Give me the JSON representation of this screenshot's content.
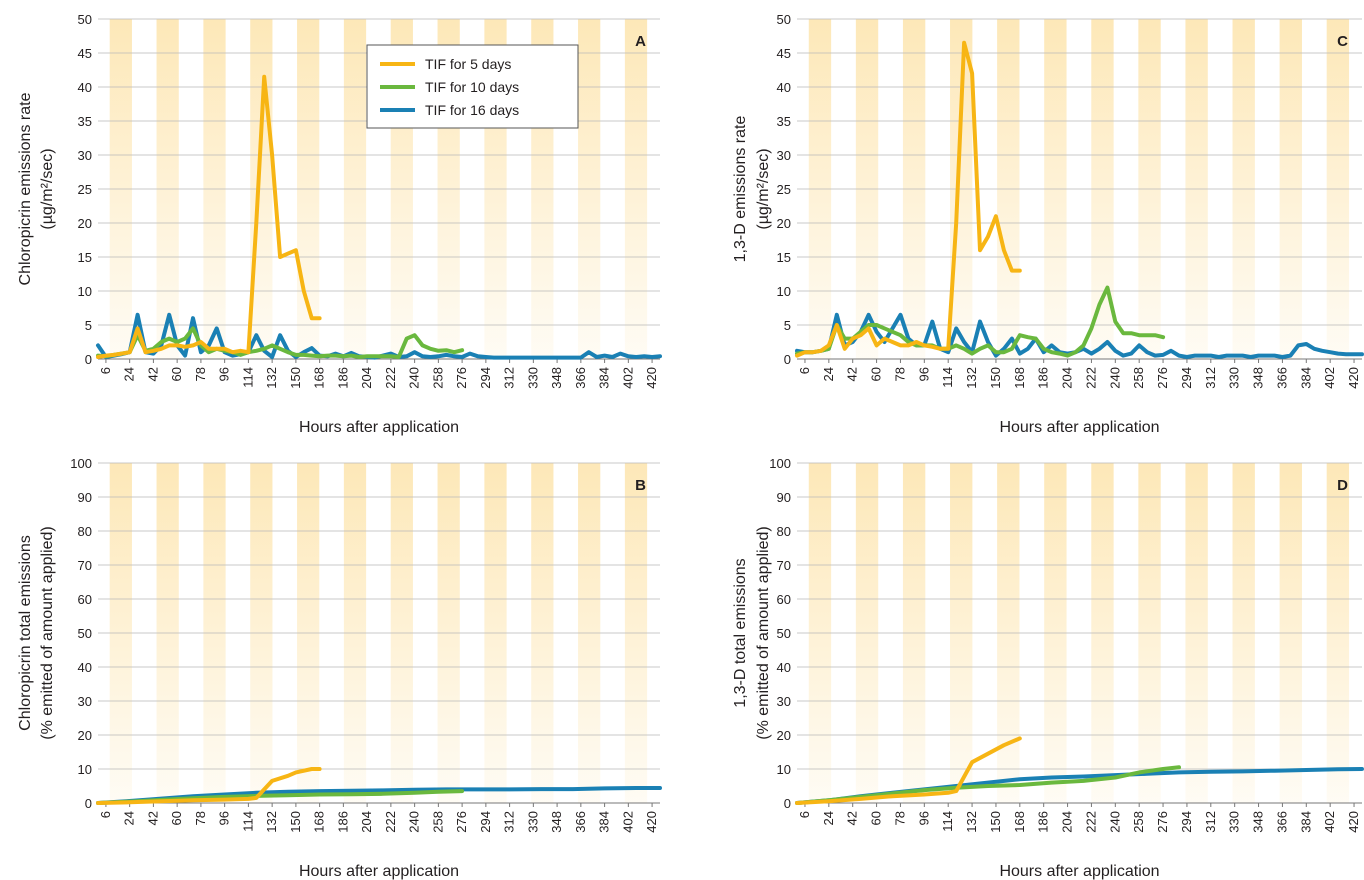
{
  "legend": [
    {
      "label": "TIF for 5 days",
      "color": "#f7b514"
    },
    {
      "label": "TIF for 10 days",
      "color": "#6ab83e"
    },
    {
      "label": "TIF for 16 days",
      "color": "#1a80b4"
    }
  ],
  "colors": {
    "band": "#fde8b8",
    "grid": "#b8b8b8",
    "axis": "#777777"
  },
  "chart_data": [
    {
      "panel": "A",
      "type": "line",
      "xlabel": "Hours after application",
      "ylabel": [
        "Chloropicrin emissions rate",
        "(µg/m²/sec)"
      ],
      "ylim": [
        0,
        50
      ],
      "yticks": [
        0,
        5,
        10,
        15,
        20,
        25,
        30,
        35,
        40,
        45,
        50
      ],
      "xlim": [
        0,
        426
      ],
      "xticks": [
        6,
        24,
        42,
        60,
        78,
        96,
        114,
        132,
        150,
        168,
        186,
        204,
        222,
        240,
        258,
        276,
        294,
        312,
        330,
        348,
        366,
        384,
        402,
        420
      ],
      "legend_position": "top-center",
      "series": [
        {
          "name": "TIF for 16 days",
          "color": "#1a80b4",
          "x": [
            0,
            6,
            12,
            18,
            24,
            30,
            36,
            42,
            48,
            54,
            60,
            66,
            72,
            78,
            84,
            90,
            96,
            102,
            108,
            114,
            120,
            126,
            132,
            138,
            144,
            150,
            156,
            162,
            168,
            174,
            180,
            186,
            192,
            198,
            204,
            210,
            216,
            222,
            228,
            234,
            240,
            246,
            252,
            258,
            264,
            270,
            276,
            282,
            288,
            294,
            300,
            306,
            312,
            318,
            324,
            330,
            336,
            342,
            348,
            354,
            360,
            366,
            372,
            378,
            384,
            390,
            396,
            402,
            408,
            414,
            420,
            426
          ],
          "y": [
            2.0,
            0.3,
            0.5,
            0.7,
            1.0,
            6.5,
            1.0,
            0.8,
            2.0,
            6.5,
            2.0,
            0.5,
            6.0,
            1.0,
            2.0,
            4.5,
            1.0,
            0.5,
            0.7,
            1.0,
            3.5,
            1.2,
            0.3,
            3.5,
            1.2,
            0.3,
            1.0,
            1.6,
            0.5,
            0.4,
            0.8,
            0.4,
            0.9,
            0.4,
            0.3,
            0.2,
            0.5,
            0.8,
            0.3,
            0.4,
            1.0,
            0.4,
            0.3,
            0.4,
            0.6,
            0.4,
            0.3,
            0.8,
            0.4,
            0.3,
            0.2,
            0.2,
            0.2,
            0.2,
            0.2,
            0.2,
            0.2,
            0.2,
            0.2,
            0.2,
            0.2,
            0.2,
            1.0,
            0.3,
            0.5,
            0.3,
            0.8,
            0.4,
            0.3,
            0.4,
            0.3,
            0.4
          ]
        },
        {
          "name": "TIF for 10 days",
          "color": "#6ab83e",
          "x": [
            0,
            6,
            12,
            18,
            24,
            30,
            36,
            42,
            48,
            54,
            60,
            66,
            72,
            78,
            84,
            90,
            96,
            102,
            108,
            114,
            120,
            126,
            132,
            138,
            144,
            150,
            156,
            162,
            168,
            174,
            180,
            186,
            192,
            198,
            204,
            210,
            216,
            222,
            228,
            234,
            240,
            246,
            252,
            258,
            264,
            270,
            276
          ],
          "y": [
            0.5,
            0.4,
            0.6,
            0.8,
            1.0,
            3.5,
            1.2,
            1.5,
            2.5,
            3.0,
            2.5,
            3.0,
            4.5,
            2.0,
            1.0,
            1.5,
            1.2,
            1.0,
            0.6,
            1.0,
            1.2,
            1.5,
            2.0,
            1.5,
            1.0,
            0.6,
            0.6,
            0.5,
            0.4,
            0.5,
            0.5,
            0.4,
            0.5,
            0.3,
            0.4,
            0.4,
            0.4,
            0.4,
            0.3,
            3.0,
            3.5,
            2.0,
            1.5,
            1.2,
            1.3,
            1.0,
            1.3
          ]
        },
        {
          "name": "TIF for 5 days",
          "color": "#f7b514",
          "x": [
            0,
            6,
            12,
            18,
            24,
            30,
            36,
            42,
            48,
            54,
            60,
            66,
            72,
            78,
            84,
            90,
            96,
            102,
            108,
            114,
            120,
            126,
            132,
            138,
            144,
            150,
            156,
            162,
            168
          ],
          "y": [
            0.3,
            0.5,
            0.6,
            0.8,
            1.0,
            4.5,
            1.0,
            1.2,
            1.5,
            2.0,
            2.0,
            1.8,
            2.0,
            2.5,
            1.5,
            1.5,
            1.5,
            1.0,
            1.2,
            1.0,
            20.0,
            41.5,
            30.0,
            15.0,
            15.5,
            16.0,
            10.0,
            6.0,
            6.0
          ]
        }
      ]
    },
    {
      "panel": "C",
      "type": "line",
      "xlabel": "Hours after application",
      "ylabel": [
        "1,3-D emissions rate",
        "(µg/m²/sec)"
      ],
      "ylim": [
        0,
        50
      ],
      "yticks": [
        0,
        5,
        10,
        15,
        20,
        25,
        30,
        35,
        40,
        45,
        50
      ],
      "xlim": [
        0,
        426
      ],
      "xticks": [
        6,
        24,
        42,
        60,
        78,
        96,
        114,
        132,
        150,
        168,
        186,
        204,
        222,
        240,
        258,
        276,
        294,
        312,
        330,
        348,
        366,
        384,
        402,
        420
      ],
      "series": [
        {
          "name": "TIF for 16 days",
          "color": "#1a80b4",
          "x": [
            0,
            6,
            12,
            18,
            24,
            30,
            36,
            42,
            48,
            54,
            60,
            66,
            72,
            78,
            84,
            90,
            96,
            102,
            108,
            114,
            120,
            126,
            132,
            138,
            144,
            150,
            156,
            162,
            168,
            174,
            180,
            186,
            192,
            198,
            204,
            210,
            216,
            222,
            228,
            234,
            240,
            246,
            252,
            258,
            264,
            270,
            276,
            282,
            288,
            294,
            300,
            306,
            312,
            318,
            324,
            330,
            336,
            342,
            348,
            354,
            360,
            366,
            372,
            378,
            384,
            390,
            396,
            402,
            408,
            414,
            420,
            426
          ],
          "y": [
            1.2,
            1.0,
            1.0,
            1.2,
            1.5,
            6.5,
            2.0,
            2.5,
            4.0,
            6.5,
            4.0,
            2.5,
            4.5,
            6.5,
            3.0,
            2.0,
            2.0,
            5.5,
            1.5,
            1.0,
            4.5,
            2.5,
            1.0,
            5.5,
            2.5,
            0.5,
            1.5,
            3.0,
            0.8,
            1.5,
            3.0,
            1.0,
            2.0,
            1.0,
            0.8,
            1.0,
            1.5,
            0.8,
            1.5,
            2.5,
            1.2,
            0.5,
            0.8,
            2.0,
            1.0,
            0.5,
            0.6,
            1.2,
            0.5,
            0.3,
            0.5,
            0.5,
            0.5,
            0.3,
            0.5,
            0.5,
            0.5,
            0.3,
            0.5,
            0.5,
            0.5,
            0.3,
            0.5,
            2.0,
            2.2,
            1.5,
            1.2,
            1.0,
            0.8,
            0.7,
            0.7,
            0.7
          ]
        },
        {
          "name": "TIF for 10 days",
          "color": "#6ab83e",
          "x": [
            0,
            6,
            12,
            18,
            24,
            30,
            36,
            42,
            48,
            54,
            60,
            66,
            72,
            78,
            84,
            90,
            96,
            102,
            108,
            114,
            120,
            126,
            132,
            138,
            144,
            150,
            156,
            162,
            168,
            174,
            180,
            186,
            192,
            198,
            204,
            210,
            216,
            222,
            228,
            234,
            240,
            246,
            252,
            258,
            264,
            270,
            276
          ],
          "y": [
            0.8,
            1.0,
            1.0,
            1.2,
            1.5,
            5.0,
            3.0,
            3.0,
            4.0,
            5.0,
            5.0,
            4.5,
            4.0,
            3.5,
            2.5,
            2.0,
            2.0,
            2.0,
            1.5,
            1.5,
            2.0,
            1.5,
            0.8,
            1.5,
            2.0,
            1.0,
            1.0,
            1.5,
            3.5,
            3.2,
            3.0,
            1.5,
            1.0,
            0.8,
            0.5,
            1.0,
            2.0,
            4.5,
            8.0,
            10.5,
            5.5,
            3.8,
            3.8,
            3.5,
            3.5,
            3.5,
            3.2
          ]
        },
        {
          "name": "TIF for 5 days",
          "color": "#f7b514",
          "x": [
            0,
            6,
            12,
            18,
            24,
            30,
            36,
            42,
            48,
            54,
            60,
            66,
            72,
            78,
            84,
            90,
            96,
            102,
            108,
            114,
            120,
            126,
            132,
            138,
            144,
            150,
            156,
            162,
            168
          ],
          "y": [
            0.5,
            1.0,
            1.0,
            1.2,
            2.0,
            5.0,
            1.5,
            3.0,
            3.5,
            4.5,
            2.0,
            3.0,
            2.5,
            2.0,
            2.0,
            2.5,
            2.0,
            1.8,
            1.5,
            1.5,
            20.0,
            46.5,
            42.0,
            16.0,
            18.0,
            21.0,
            16.0,
            13.0,
            13.0
          ]
        }
      ]
    },
    {
      "panel": "B",
      "type": "line",
      "xlabel": "Hours after application",
      "ylabel": [
        "Chloropicrin total emissions",
        "(% emitted of amount applied)"
      ],
      "ylim": [
        0,
        100
      ],
      "yticks": [
        0,
        10,
        20,
        30,
        40,
        50,
        60,
        70,
        80,
        90,
        100
      ],
      "xlim": [
        0,
        426
      ],
      "xticks": [
        6,
        24,
        42,
        60,
        78,
        96,
        114,
        132,
        150,
        168,
        186,
        204,
        222,
        240,
        258,
        276,
        294,
        312,
        330,
        348,
        366,
        384,
        402,
        420
      ],
      "series": [
        {
          "name": "TIF for 16 days",
          "color": "#1a80b4",
          "x": [
            0,
            24,
            48,
            72,
            96,
            120,
            144,
            168,
            192,
            216,
            240,
            264,
            288,
            312,
            336,
            360,
            384,
            408,
            426
          ],
          "y": [
            0.0,
            0.6,
            1.3,
            2.0,
            2.5,
            3.0,
            3.3,
            3.5,
            3.6,
            3.7,
            3.9,
            4.0,
            4.0,
            4.0,
            4.1,
            4.1,
            4.3,
            4.4,
            4.4
          ]
        },
        {
          "name": "TIF for 10 days",
          "color": "#6ab83e",
          "x": [
            0,
            24,
            48,
            72,
            96,
            120,
            144,
            168,
            192,
            216,
            240,
            258,
            276
          ],
          "y": [
            0.0,
            0.4,
            0.9,
            1.4,
            1.8,
            2.1,
            2.3,
            2.5,
            2.6,
            2.7,
            3.0,
            3.3,
            3.5
          ]
        },
        {
          "name": "TIF for 5 days",
          "color": "#f7b514",
          "x": [
            0,
            24,
            48,
            72,
            96,
            114,
            120,
            132,
            144,
            150,
            162,
            168
          ],
          "y": [
            0.0,
            0.2,
            0.5,
            0.8,
            1.0,
            1.2,
            1.5,
            6.5,
            8.0,
            9.0,
            10.0,
            10.0
          ]
        }
      ]
    },
    {
      "panel": "D",
      "type": "line",
      "xlabel": "Hours after application",
      "ylabel": [
        "1,3-D total emissions",
        "(% emitted of amount applied)"
      ],
      "ylim": [
        0,
        100
      ],
      "yticks": [
        0,
        10,
        20,
        30,
        40,
        50,
        60,
        70,
        80,
        90,
        100
      ],
      "xlim": [
        0,
        426
      ],
      "xticks": [
        6,
        24,
        42,
        60,
        78,
        96,
        114,
        132,
        150,
        168,
        186,
        204,
        222,
        240,
        258,
        276,
        294,
        312,
        330,
        348,
        366,
        384,
        402,
        420
      ],
      "series": [
        {
          "name": "TIF for 16 days",
          "color": "#1a80b4",
          "x": [
            0,
            24,
            48,
            72,
            96,
            120,
            144,
            168,
            192,
            216,
            240,
            264,
            288,
            312,
            336,
            360,
            384,
            408,
            426
          ],
          "y": [
            0.0,
            0.8,
            2.0,
            3.0,
            4.0,
            5.0,
            6.0,
            7.0,
            7.5,
            7.8,
            8.2,
            8.6,
            9.0,
            9.2,
            9.3,
            9.5,
            9.7,
            9.9,
            10.0
          ]
        },
        {
          "name": "TIF for 10 days",
          "color": "#6ab83e",
          "x": [
            0,
            24,
            48,
            72,
            96,
            120,
            144,
            168,
            192,
            216,
            240,
            258,
            276,
            288
          ],
          "y": [
            0.0,
            0.8,
            1.8,
            2.8,
            3.8,
            4.5,
            5.0,
            5.3,
            6.0,
            6.5,
            7.5,
            9.0,
            10.0,
            10.5
          ]
        },
        {
          "name": "TIF for 5 days",
          "color": "#f7b514",
          "x": [
            0,
            24,
            48,
            72,
            96,
            114,
            120,
            132,
            144,
            156,
            168
          ],
          "y": [
            0.0,
            0.5,
            1.2,
            2.0,
            2.5,
            3.0,
            3.5,
            12.0,
            14.5,
            17.0,
            19.0
          ]
        }
      ]
    }
  ]
}
